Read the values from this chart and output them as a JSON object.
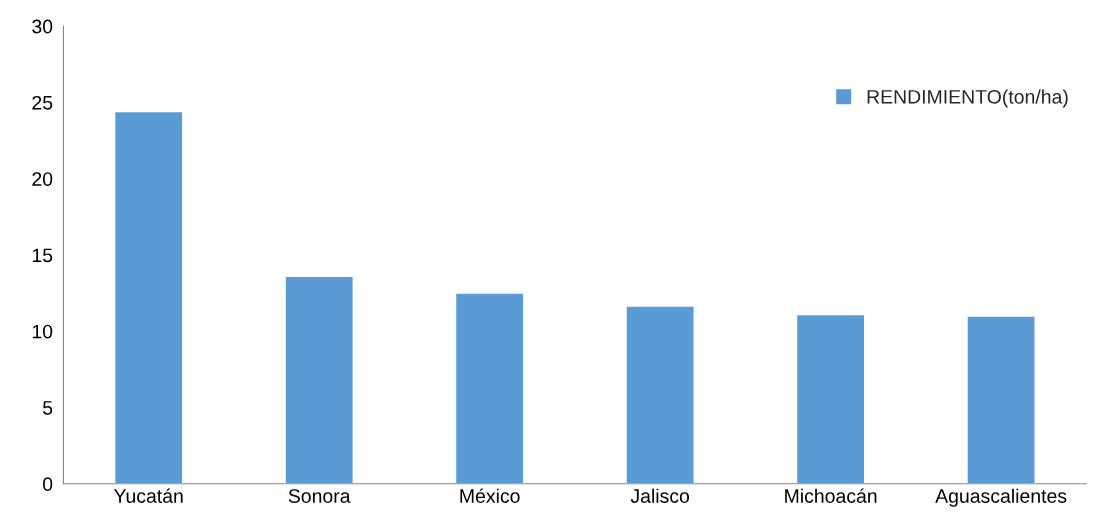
{
  "chart_data": {
    "type": "bar",
    "categories": [
      "Yucatán",
      "Sonora",
      "México",
      "Jalisco",
      "Michoacán",
      "Aguascalientes"
    ],
    "series": [
      {
        "name": "RENDIMIENTO(ton/ha)",
        "color": "#5b9bd5",
        "values": [
          24.4,
          13.6,
          12.5,
          11.65,
          11.1,
          11.0
        ]
      }
    ],
    "ylim": [
      0,
      30
    ],
    "yticks": [
      0,
      5,
      10,
      15,
      20,
      25,
      30
    ],
    "grid": false,
    "legend": "top right"
  }
}
